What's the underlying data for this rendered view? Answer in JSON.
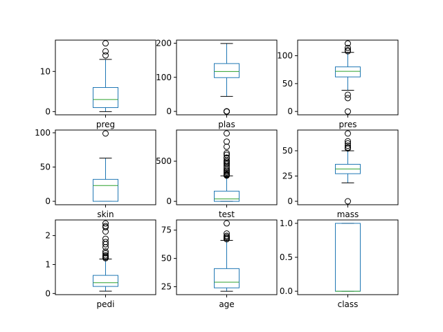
{
  "chart_data": {
    "type": "box",
    "layout": {
      "rows": 3,
      "cols": 3
    },
    "colors": {
      "box": "#1f77b4",
      "median": "#2ca02c",
      "flier": "#000000"
    },
    "panels": [
      {
        "label": "preg",
        "ylim": [
          -0.8,
          17.8
        ],
        "yticks": [
          0,
          10
        ],
        "yticklabels": [
          "0",
          "10"
        ],
        "whisker_low": 0,
        "q1": 1,
        "median": 3,
        "q3": 6,
        "whisker_high": 13,
        "outliers": [
          14,
          15,
          17
        ]
      },
      {
        "label": "plas",
        "ylim": [
          -10,
          209
        ],
        "yticks": [
          0,
          100,
          200
        ],
        "yticklabels": [
          "0",
          "100",
          "200"
        ],
        "whisker_low": 44,
        "q1": 99,
        "median": 117,
        "q3": 140.25,
        "whisker_high": 199,
        "outliers": [
          0,
          0,
          0,
          0,
          0
        ]
      },
      {
        "label": "pres",
        "ylim": [
          -6,
          128
        ],
        "yticks": [
          0,
          50,
          100
        ],
        "yticklabels": [
          "0",
          "50",
          "100"
        ],
        "whisker_low": 38,
        "q1": 62,
        "median": 72,
        "q3": 80,
        "whisker_high": 106,
        "outliers": [
          0,
          24,
          30,
          108,
          110,
          114,
          122
        ]
      },
      {
        "label": "skin",
        "ylim": [
          -5,
          104
        ],
        "yticks": [
          0,
          50,
          100
        ],
        "yticklabels": [
          "0",
          "50",
          "100"
        ],
        "whisker_low": 0,
        "q1": 0,
        "median": 23,
        "q3": 32,
        "whisker_high": 63,
        "outliers": [
          99
        ]
      },
      {
        "label": "test",
        "ylim": [
          -42,
          888
        ],
        "yticks": [
          0,
          500
        ],
        "yticklabels": [
          "0",
          "500"
        ],
        "whisker_low": 0,
        "q1": 0,
        "median": 30.5,
        "q3": 127.25,
        "whisker_high": 318,
        "outliers": [
          321,
          325,
          330,
          335,
          342,
          360,
          375,
          392,
          415,
          440,
          465,
          480,
          495,
          510,
          540,
          545,
          579,
          600,
          680,
          744,
          846
        ]
      },
      {
        "label": "mass",
        "ylim": [
          -3.4,
          70.5
        ],
        "yticks": [
          0,
          25,
          50
        ],
        "yticklabels": [
          "0",
          "25",
          "50"
        ],
        "whisker_low": 18.2,
        "q1": 27.3,
        "median": 32,
        "q3": 36.6,
        "whisker_high": 50,
        "outliers": [
          0,
          52.3,
          53.2,
          55,
          57.3,
          59.4,
          67.1
        ]
      },
      {
        "label": "pedi",
        "ylim": [
          -0.04,
          2.54
        ],
        "yticks": [
          0,
          1,
          2
        ],
        "yticklabels": [
          "0",
          "1",
          "2"
        ],
        "whisker_low": 0.078,
        "q1": 0.244,
        "median": 0.3725,
        "q3": 0.626,
        "whisker_high": 1.19,
        "outliers": [
          1.22,
          1.25,
          1.28,
          1.32,
          1.39,
          1.45,
          1.6,
          1.7,
          1.78,
          1.89,
          2.14,
          2.29,
          2.33,
          2.42
        ]
      },
      {
        "label": "age",
        "ylim": [
          18,
          84
        ],
        "yticks": [
          25,
          50,
          75
        ],
        "yticklabels": [
          "25",
          "50",
          "75"
        ],
        "whisker_low": 21,
        "q1": 24,
        "median": 29,
        "q3": 41,
        "whisker_high": 66,
        "outliers": [
          67,
          68,
          69,
          70,
          72,
          81
        ]
      },
      {
        "label": "class",
        "ylim": [
          -0.05,
          1.05
        ],
        "yticks": [
          0,
          0.5,
          1
        ],
        "yticklabels": [
          "0.0",
          "0.5",
          "1.0"
        ],
        "whisker_low": 0,
        "q1": 0,
        "median": 0,
        "q3": 1,
        "whisker_high": 1,
        "outliers": []
      }
    ]
  }
}
